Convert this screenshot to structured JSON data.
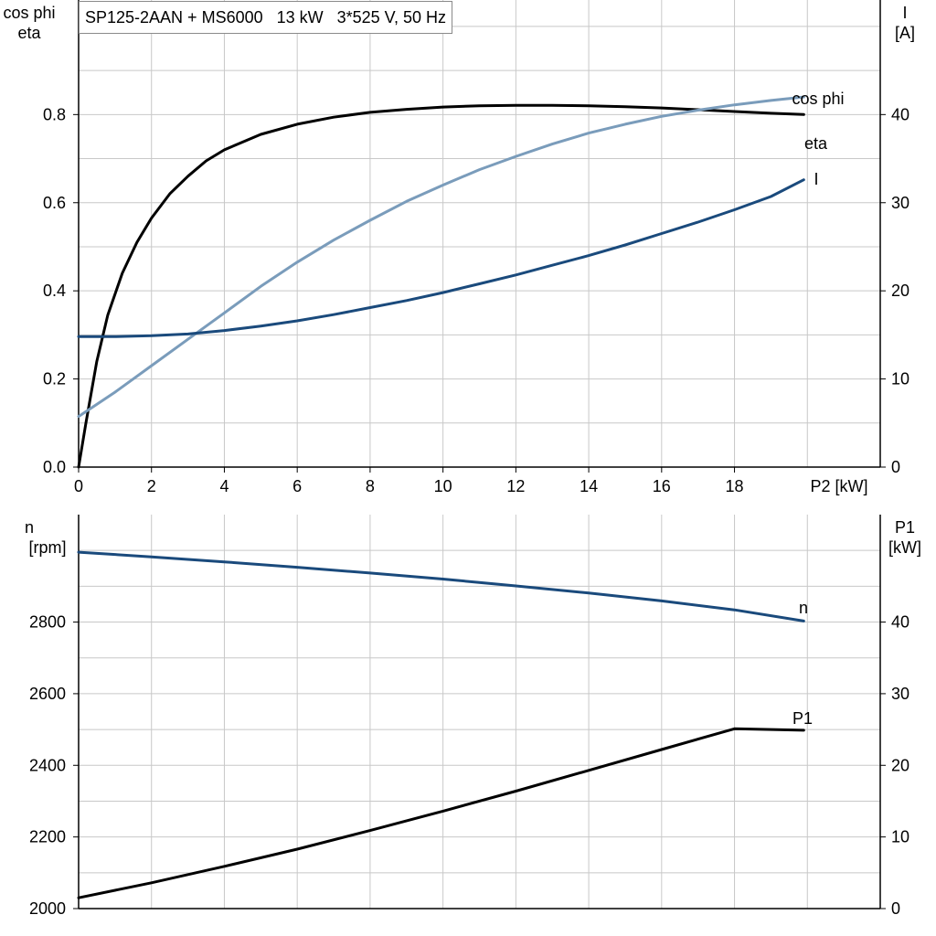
{
  "title": "SP125-2AAN + MS6000   13 kW   3*525 V, 50 Hz",
  "colors": {
    "eta": "#000000",
    "cos_phi": "#7a9cbb",
    "I": "#1a4a7c",
    "n": "#1a4a7c",
    "P1": "#000000",
    "grid": "#c8c8c8",
    "axis": "#000000"
  },
  "chart_data": [
    {
      "type": "line",
      "xlabel": "P2 [kW]",
      "x_ticks": [
        "0",
        "2",
        "4",
        "6",
        "8",
        "10",
        "12",
        "14",
        "16",
        "18"
      ],
      "xlim": [
        0,
        22
      ],
      "y_left_label": [
        "cos phi",
        "eta"
      ],
      "y_left_ticks": [
        "0.0",
        "0.2",
        "0.4",
        "0.6",
        "0.8"
      ],
      "y_left_lim": [
        0,
        1.06
      ],
      "y_right_label": [
        "I",
        "[A]"
      ],
      "y_right_ticks": [
        "0",
        "10",
        "20",
        "30",
        "40"
      ],
      "y_right_lim": [
        0,
        53
      ],
      "grid": true,
      "series": [
        {
          "name": "eta",
          "axis": "left",
          "color": "#000000",
          "x": [
            0,
            0.2,
            0.5,
            0.8,
            1.2,
            1.6,
            2,
            2.5,
            3,
            3.5,
            4,
            5,
            6,
            7,
            8,
            9,
            10,
            11,
            12,
            13,
            14,
            15,
            16,
            17,
            18,
            19,
            19.9
          ],
          "y": [
            0,
            0.1,
            0.24,
            0.345,
            0.44,
            0.51,
            0.565,
            0.62,
            0.66,
            0.695,
            0.72,
            0.755,
            0.778,
            0.794,
            0.805,
            0.812,
            0.817,
            0.82,
            0.821,
            0.821,
            0.82,
            0.818,
            0.815,
            0.811,
            0.807,
            0.803,
            0.8
          ]
        },
        {
          "name": "cos phi",
          "axis": "left",
          "color": "#7a9cbb",
          "x": [
            0,
            1,
            2,
            3,
            4,
            5,
            6,
            7,
            8,
            9,
            10,
            11,
            12,
            13,
            14,
            15,
            16,
            17,
            18,
            19,
            19.9
          ],
          "y": [
            0.115,
            0.17,
            0.23,
            0.29,
            0.35,
            0.41,
            0.465,
            0.515,
            0.56,
            0.603,
            0.64,
            0.675,
            0.705,
            0.733,
            0.758,
            0.778,
            0.796,
            0.81,
            0.822,
            0.832,
            0.84
          ]
        },
        {
          "name": "I",
          "axis": "right",
          "color": "#1a4a7c",
          "x": [
            0,
            1,
            2,
            3,
            4,
            5,
            6,
            7,
            8,
            9,
            10,
            11,
            12,
            13,
            14,
            15,
            16,
            17,
            18,
            19,
            19.9
          ],
          "y": [
            14.8,
            14.8,
            14.9,
            15.1,
            15.5,
            16,
            16.6,
            17.3,
            18.1,
            18.9,
            19.8,
            20.8,
            21.8,
            22.9,
            24,
            25.2,
            26.5,
            27.8,
            29.2,
            30.7,
            32.6
          ]
        }
      ]
    },
    {
      "type": "line",
      "xlabel": "",
      "xlim": [
        0,
        22
      ],
      "y_left_label": [
        "n",
        "[rpm]"
      ],
      "y_left_ticks": [
        "2000",
        "2200",
        "2400",
        "2600",
        "2800"
      ],
      "y_left_lim": [
        2000,
        3100
      ],
      "y_right_label": [
        "P1",
        "[kW]"
      ],
      "y_right_ticks": [
        "0",
        "10",
        "20",
        "30",
        "40"
      ],
      "y_right_lim": [
        0,
        55
      ],
      "grid": true,
      "series": [
        {
          "name": "n",
          "axis": "left",
          "color": "#1a4a7c",
          "x": [
            0,
            2,
            4,
            6,
            8,
            10,
            12,
            14,
            16,
            18,
            19.9
          ],
          "y": [
            2995,
            2982,
            2968,
            2953,
            2937,
            2920,
            2901,
            2881,
            2859,
            2834,
            2803
          ]
        },
        {
          "name": "P1",
          "axis": "right",
          "color": "#000000",
          "x": [
            0,
            2,
            4,
            6,
            8,
            10,
            12,
            14,
            16,
            18,
            19.9
          ],
          "y": [
            1.5,
            3.6,
            5.9,
            8.3,
            10.9,
            13.6,
            16.4,
            19.3,
            22.2,
            25.1,
            24.9
          ]
        }
      ]
    }
  ]
}
